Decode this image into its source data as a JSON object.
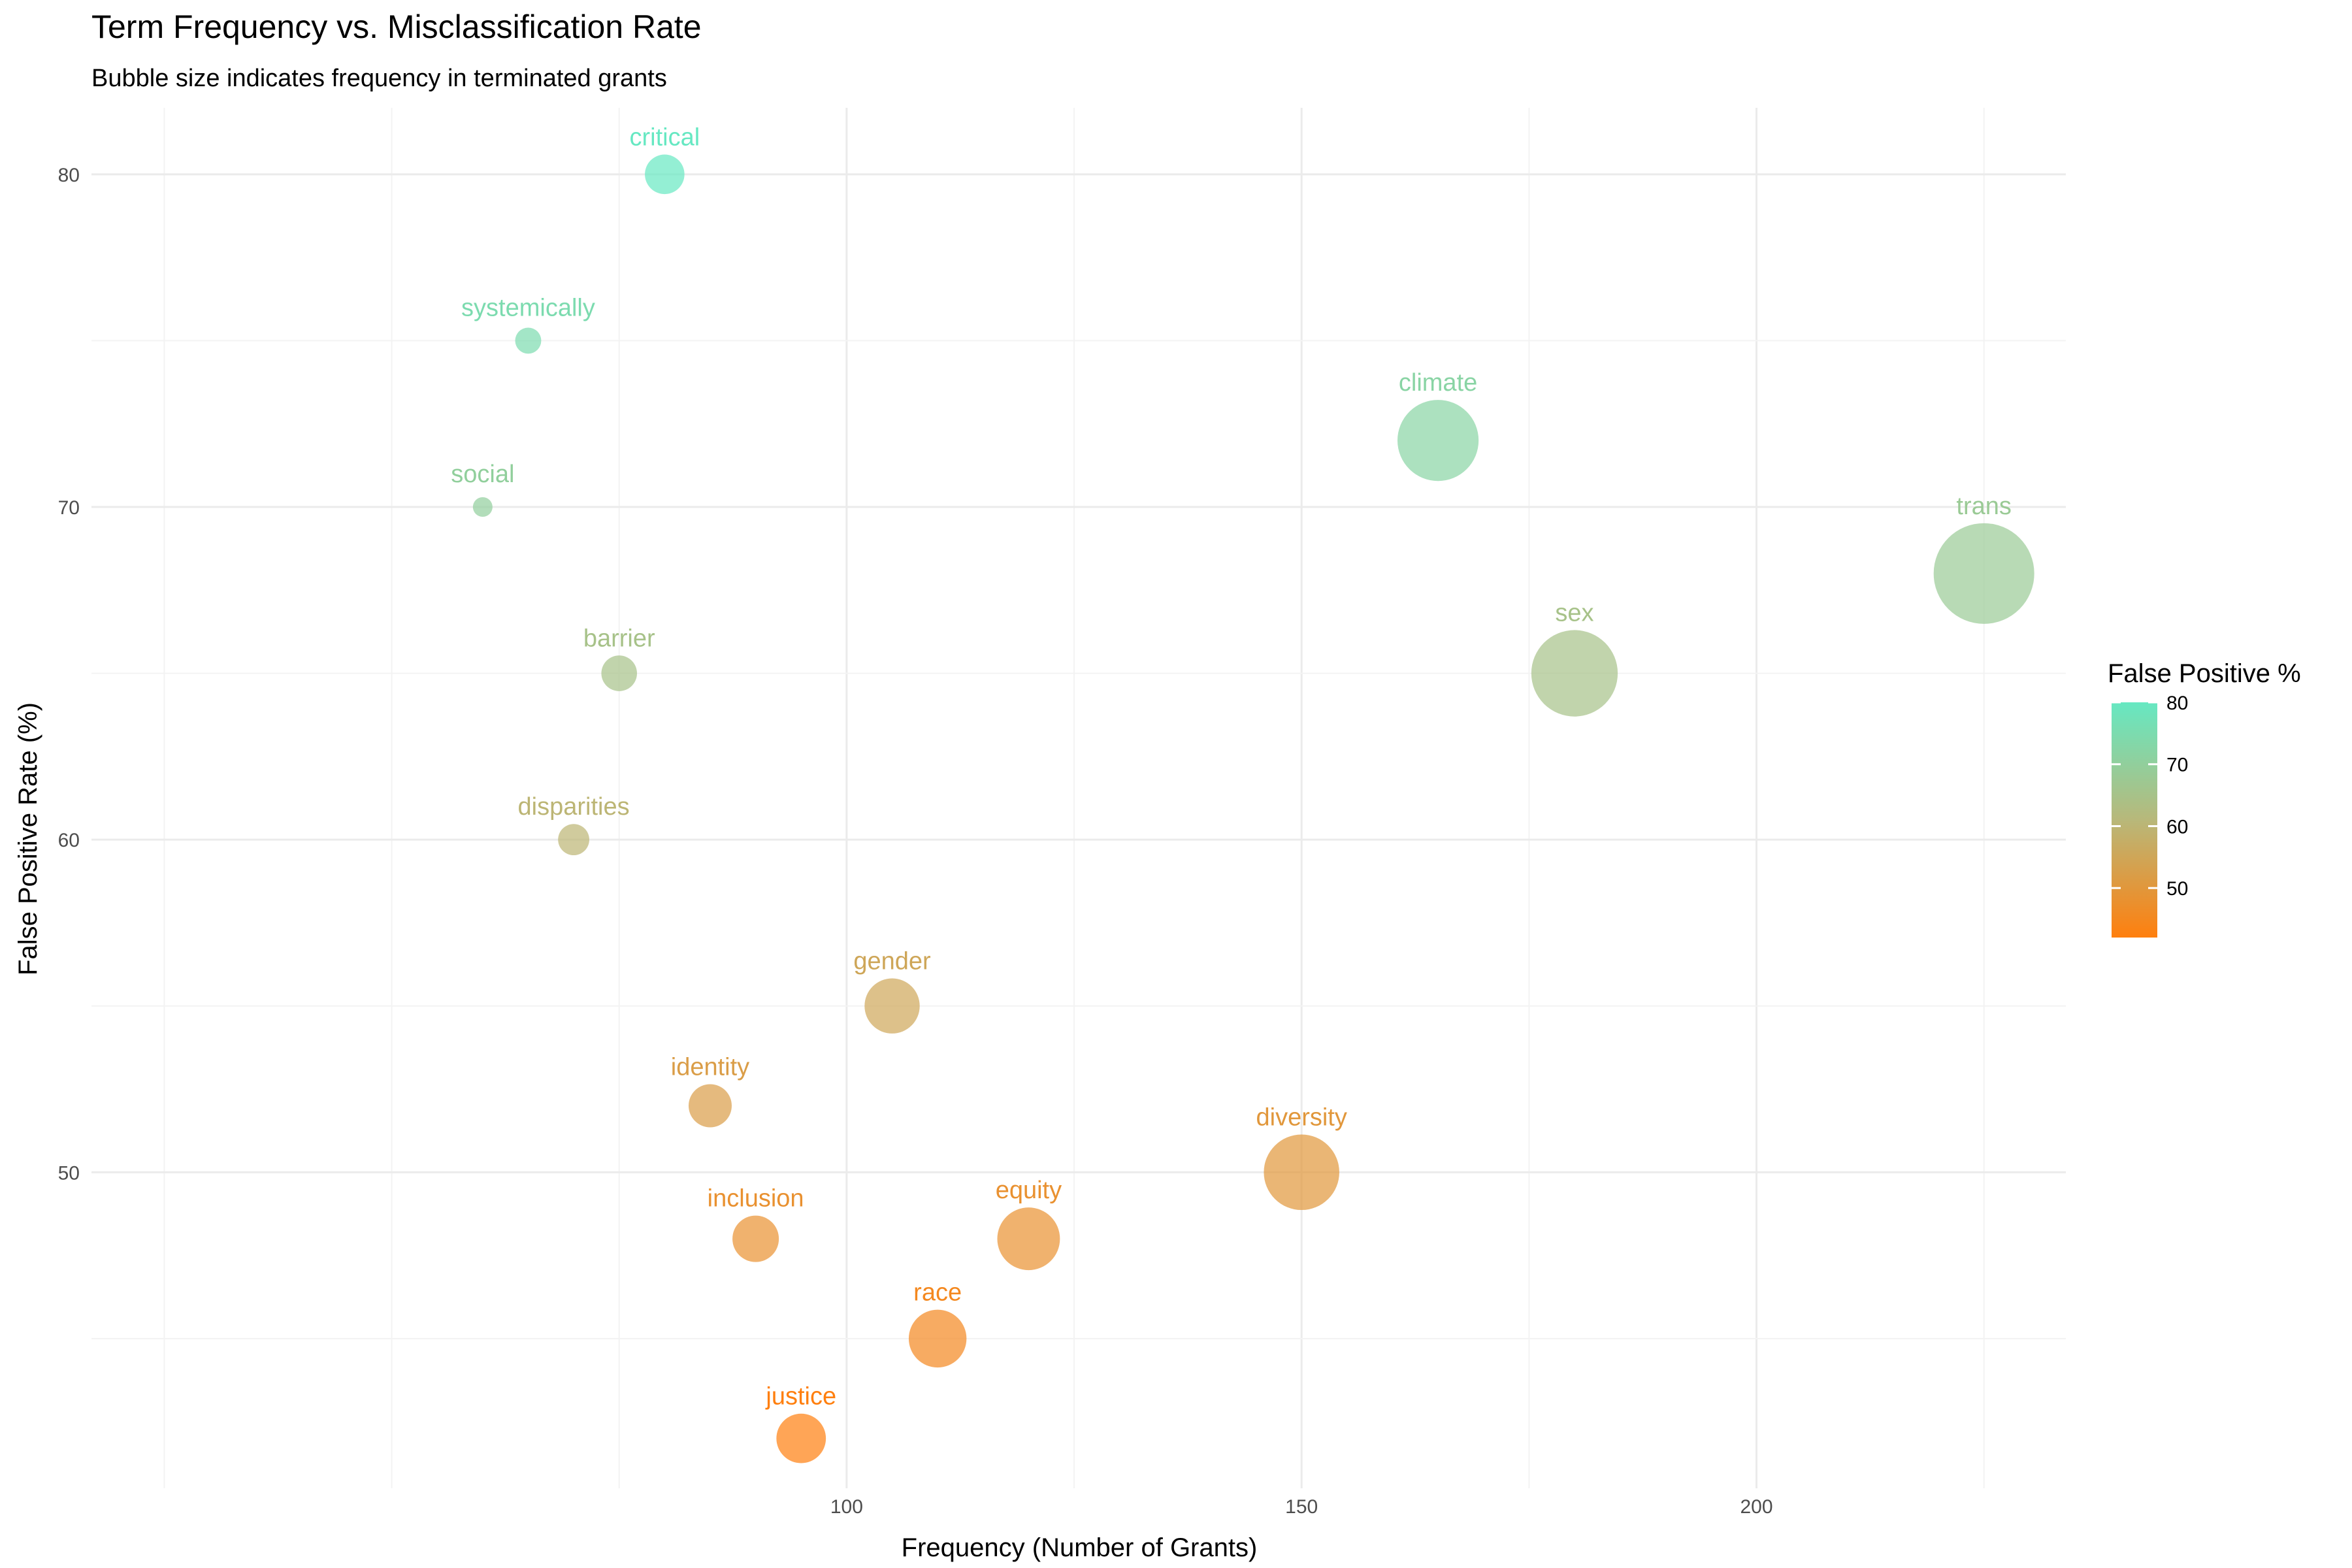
{
  "chart_data": {
    "type": "scatter",
    "title": "Term Frequency vs. Misclassification Rate",
    "subtitle": "Bubble size indicates frequency in terminated grants",
    "xlabel": "Frequency (Number of Grants)",
    "ylabel": "False Positive Rate (%)",
    "xlim": [
      17,
      234
    ],
    "ylim": [
      40.5,
      82
    ],
    "x_ticks": [
      100,
      150,
      200
    ],
    "y_ticks": [
      50,
      60,
      70,
      80
    ],
    "grid": true,
    "legend": {
      "title": "False Positive %",
      "placement": "right",
      "range": [
        42,
        80
      ],
      "ticks": [
        50,
        60,
        70,
        80
      ],
      "color_low": "#ff7f0e",
      "color_mid": "#b8b87a",
      "color_high": "#66e8c2"
    },
    "points": [
      {
        "term": "critical",
        "x": 80,
        "y": 80
      },
      {
        "term": "systemically",
        "x": 65,
        "y": 75
      },
      {
        "term": "climate",
        "x": 165,
        "y": 72
      },
      {
        "term": "social",
        "x": 60,
        "y": 70
      },
      {
        "term": "trans",
        "x": 225,
        "y": 68
      },
      {
        "term": "barrier",
        "x": 75,
        "y": 65
      },
      {
        "term": "sex",
        "x": 180,
        "y": 65
      },
      {
        "term": "disparities",
        "x": 70,
        "y": 60
      },
      {
        "term": "gender",
        "x": 105,
        "y": 55
      },
      {
        "term": "identity",
        "x": 85,
        "y": 52
      },
      {
        "term": "diversity",
        "x": 150,
        "y": 50
      },
      {
        "term": "inclusion",
        "x": 90,
        "y": 48
      },
      {
        "term": "equity",
        "x": 120,
        "y": 48
      },
      {
        "term": "race",
        "x": 110,
        "y": 45
      },
      {
        "term": "justice",
        "x": 95,
        "y": 42
      }
    ]
  }
}
